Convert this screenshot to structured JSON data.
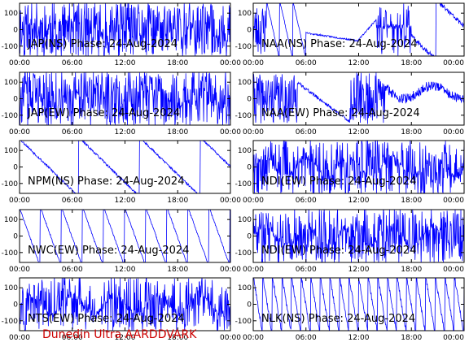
{
  "colors": {
    "trace": "#0000ff",
    "axis": "#000000",
    "credit": "#cc0000"
  },
  "footer": {
    "credit": "Dunedin Ultra AARDDVARK"
  },
  "chart_data": [
    {
      "type": "line",
      "title": "JAP(NS) Phase: 24-Aug-2024",
      "xticks": [
        "00:00",
        "06:00",
        "12:00",
        "18:00",
        "00:00"
      ],
      "yticks": [
        "100",
        "0",
        "-100"
      ],
      "ylim": [
        -160,
        160
      ],
      "xlim": [
        0,
        24
      ]
    },
    {
      "type": "line",
      "title": "NAA(NS) Phase: 24-Aug-2024",
      "xticks": [
        "00:00",
        "06:00",
        "12:00",
        "18:00",
        "00:00"
      ],
      "yticks": [
        "100",
        "0",
        "-100"
      ],
      "ylim": [
        -160,
        160
      ],
      "xlim": [
        0,
        24
      ]
    },
    {
      "type": "line",
      "title": "JAP(EW) Phase: 24-Aug-2024",
      "xticks": [
        "00:00",
        "06:00",
        "12:00",
        "18:00",
        "00:00"
      ],
      "yticks": [
        "100",
        "0",
        "-100"
      ],
      "ylim": [
        -160,
        160
      ],
      "xlim": [
        0,
        24
      ]
    },
    {
      "type": "line",
      "title": "NAA(EW) Phase: 24-Aug-2024",
      "xticks": [
        "00:00",
        "06:00",
        "12:00",
        "18:00",
        "00:00"
      ],
      "yticks": [
        "100",
        "0",
        "-100"
      ],
      "ylim": [
        -160,
        160
      ],
      "xlim": [
        0,
        24
      ]
    },
    {
      "type": "line",
      "title": "NPM(NS) Phase: 24-Aug-2024",
      "xticks": [
        "00:00",
        "06:00",
        "12:00",
        "18:00",
        "00:00"
      ],
      "yticks": [
        "100",
        "0",
        "-100"
      ],
      "ylim": [
        -160,
        160
      ],
      "xlim": [
        0,
        24
      ]
    },
    {
      "type": "line",
      "title": "NDI(EW) Phase: 24-Aug-2024",
      "xticks": [
        "00:00",
        "06:00",
        "12:00",
        "18:00",
        "00:00"
      ],
      "yticks": [
        "100",
        "0",
        "-100"
      ],
      "ylim": [
        -160,
        160
      ],
      "xlim": [
        0,
        24
      ]
    },
    {
      "type": "line",
      "title": "NWC(EW) Phase: 24-Aug-2024",
      "xticks": [
        "00:00",
        "06:00",
        "12:00",
        "18:00",
        "00:00"
      ],
      "yticks": [
        "100",
        "0",
        "-100"
      ],
      "ylim": [
        -160,
        160
      ],
      "xlim": [
        0,
        24
      ]
    },
    {
      "type": "line",
      "title": "NDI(EW) Phase: 24-Aug-2024",
      "xticks": [
        "00:00",
        "06:00",
        "12:00",
        "18:00",
        "00:00"
      ],
      "yticks": [
        "100",
        "0",
        "-100"
      ],
      "ylim": [
        -160,
        160
      ],
      "xlim": [
        0,
        24
      ]
    },
    {
      "type": "line",
      "title": "NTS(EW) Phase: 24-Aug-2024",
      "xticks": [
        "00:00",
        "06:00",
        "12:00",
        "18:00",
        "00:00"
      ],
      "yticks": [
        "100",
        "0",
        "-100"
      ],
      "ylim": [
        -160,
        160
      ],
      "xlim": [
        0,
        24
      ]
    },
    {
      "type": "line",
      "title": "NLK(NS) Phase: 24-Aug-2024",
      "xticks": [
        "00:00",
        "06:00",
        "12:00",
        "18:00",
        "00:00"
      ],
      "yticks": [
        "100",
        "0",
        "-100"
      ],
      "ylim": [
        -160,
        160
      ],
      "xlim": [
        0,
        24
      ]
    }
  ]
}
